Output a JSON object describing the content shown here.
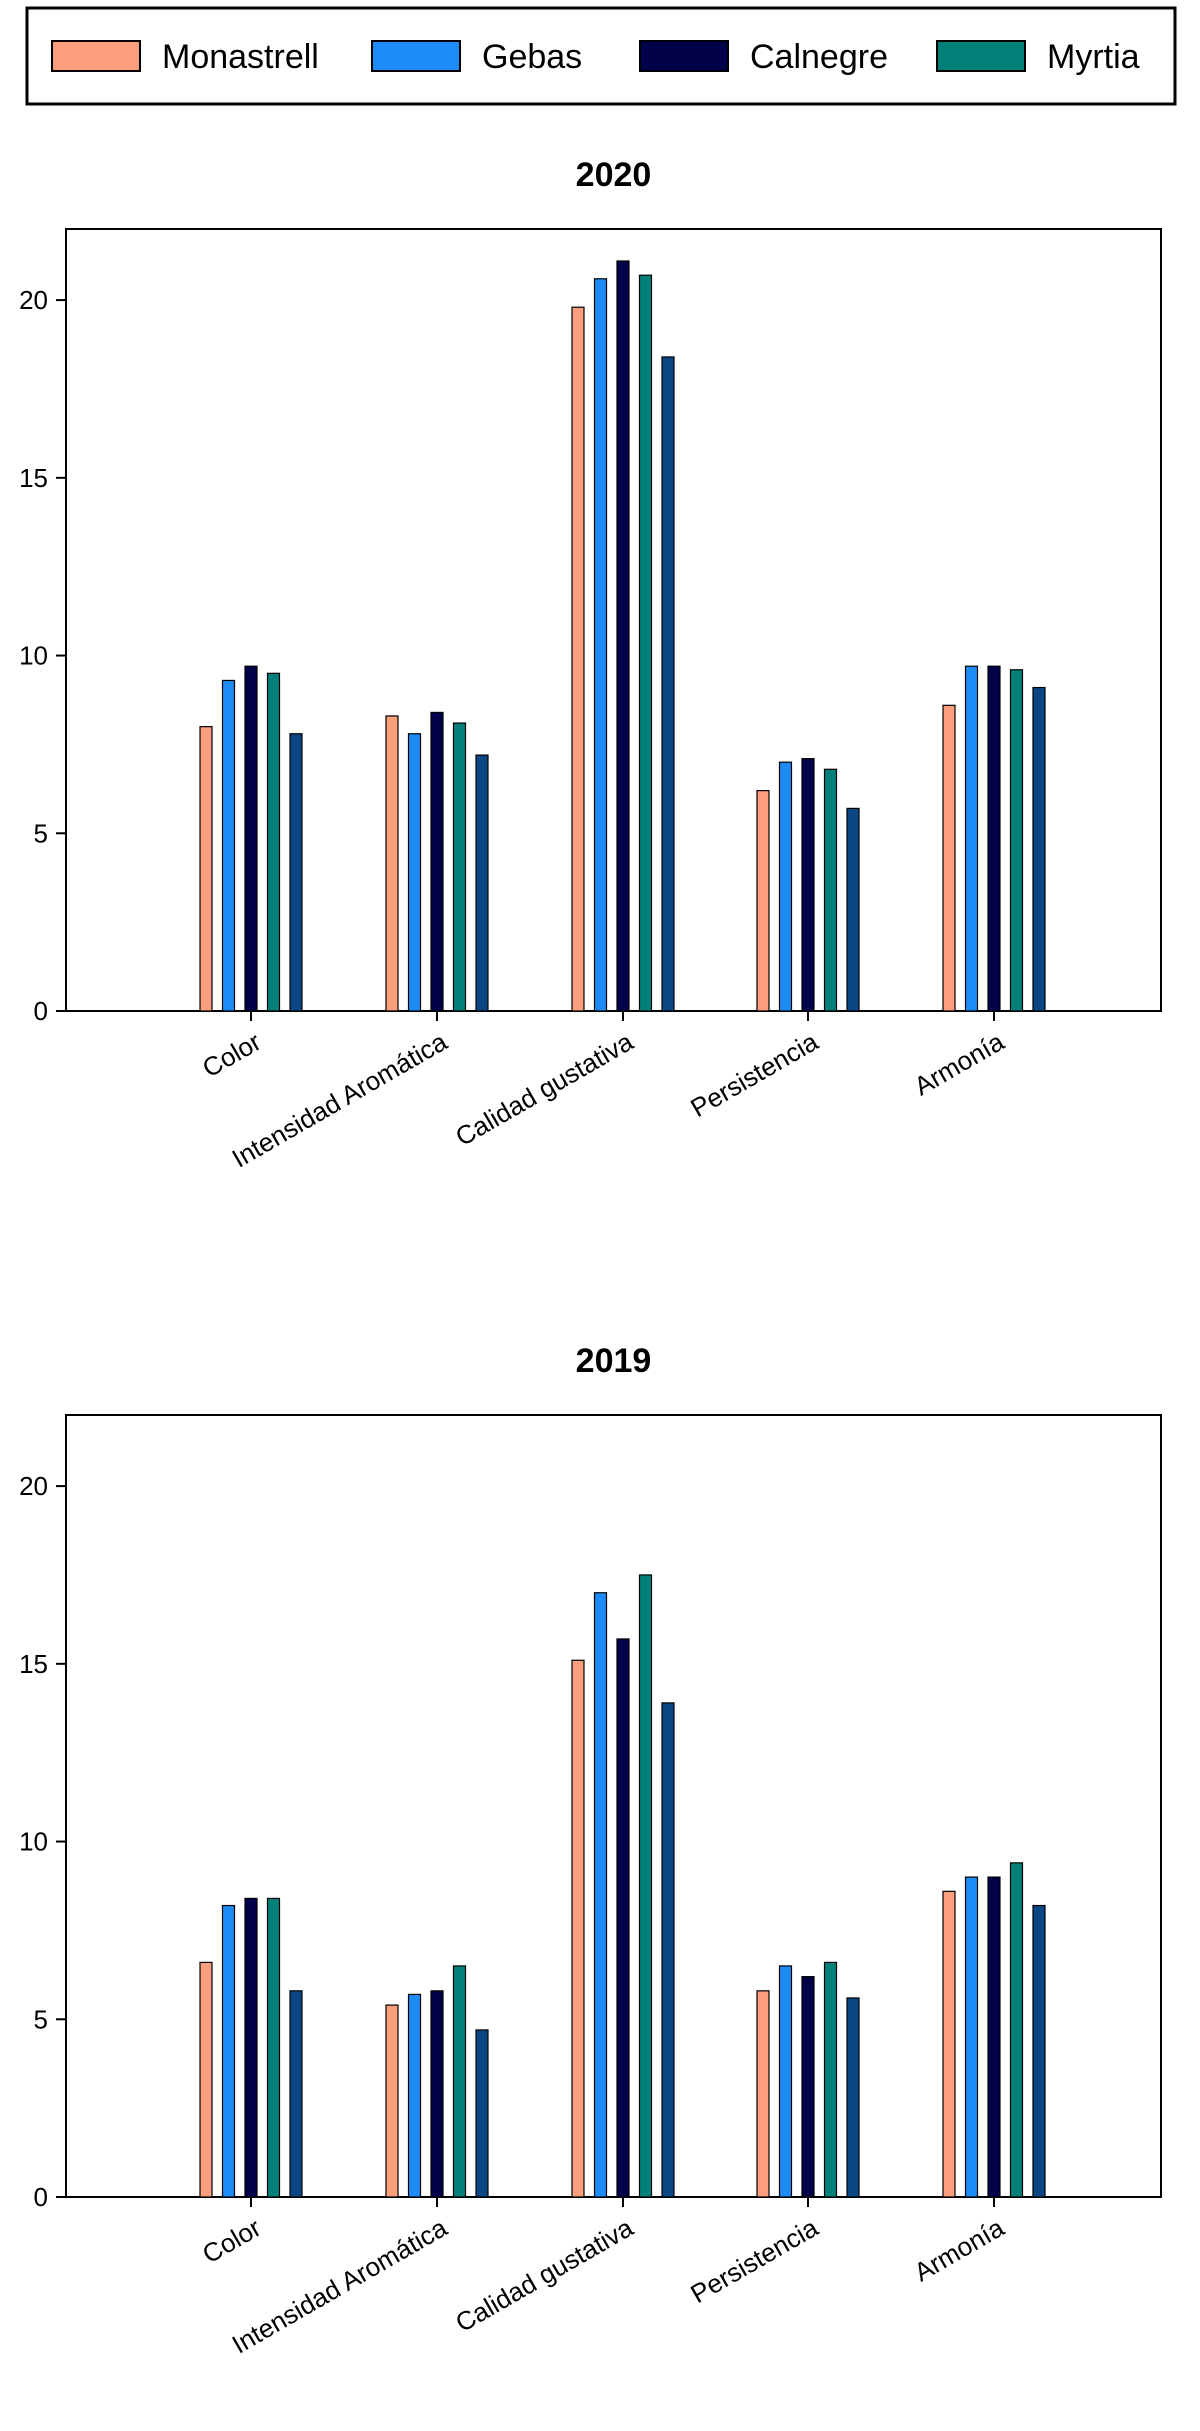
{
  "legend": {
    "items": [
      {
        "name": "Monastrell",
        "color": "#FA9E7D"
      },
      {
        "name": "Gebas",
        "color": "#1E8CF8"
      },
      {
        "name": "Calnegre",
        "color": "#02024A"
      },
      {
        "name": "Myrtia",
        "color": "#03807A"
      }
    ]
  },
  "chart_data": [
    {
      "type": "bar",
      "title": "2020",
      "categories": [
        "Color",
        "Intensidad Aromática",
        "Calidad gustativa",
        "Persistencia",
        "Armonía"
      ],
      "ylim": [
        0,
        22
      ],
      "yticks": [
        0,
        5,
        10,
        15,
        20
      ],
      "grid": false,
      "legend_position": "top",
      "series": [
        {
          "name": "Monastrell",
          "color": "#FA9E7D",
          "values": [
            8.0,
            8.3,
            19.8,
            6.2,
            8.6
          ]
        },
        {
          "name": "Gebas",
          "color": "#1E8CF8",
          "values": [
            9.3,
            7.8,
            20.6,
            7.0,
            9.7
          ]
        },
        {
          "name": "Calnegre",
          "color": "#02024A",
          "values": [
            9.7,
            8.4,
            21.1,
            7.1,
            9.7
          ]
        },
        {
          "name": "Myrtia",
          "color": "#03807A",
          "values": [
            9.5,
            8.1,
            20.7,
            6.8,
            9.6
          ]
        },
        {
          "color": "#0A4683",
          "values": [
            7.8,
            7.2,
            18.4,
            5.7,
            9.1
          ]
        }
      ]
    },
    {
      "type": "bar",
      "title": "2019",
      "categories": [
        "Color",
        "Intensidad Aromática",
        "Calidad gustativa",
        "Persistencia",
        "Armonía"
      ],
      "ylim": [
        0,
        22
      ],
      "yticks": [
        0,
        5,
        10,
        15,
        20
      ],
      "grid": false,
      "legend_position": "top",
      "series": [
        {
          "name": "Monastrell",
          "color": "#FA9E7D",
          "values": [
            6.6,
            5.4,
            15.1,
            5.8,
            8.6
          ]
        },
        {
          "name": "Gebas",
          "color": "#1E8CF8",
          "values": [
            8.2,
            5.7,
            17.0,
            6.5,
            9.0
          ]
        },
        {
          "name": "Calnegre",
          "color": "#02024A",
          "values": [
            8.4,
            5.8,
            15.7,
            6.2,
            9.0
          ]
        },
        {
          "name": "Myrtia",
          "color": "#03807A",
          "values": [
            8.4,
            6.5,
            17.5,
            6.6,
            9.4
          ]
        },
        {
          "color": "#0A4683",
          "values": [
            5.8,
            4.7,
            13.9,
            5.6,
            8.2
          ]
        }
      ]
    }
  ]
}
